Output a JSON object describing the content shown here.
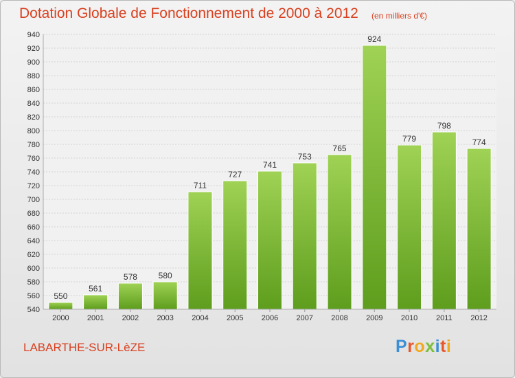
{
  "header": {
    "title": "Dotation Globale de Fonctionnement de 2000 à 2012",
    "subtitle": "(en milliers d'€)"
  },
  "footer": {
    "commune": "LABARTHE-SUR-LèZE",
    "logo_letters": [
      "P",
      "r",
      "o",
      "x",
      "i",
      "t",
      "i"
    ]
  },
  "colors": {
    "title": "#d9401f",
    "bar_top": "#9fd255",
    "bar_bottom": "#5e9d1d"
  },
  "chart_data": {
    "type": "bar",
    "categories": [
      "2000",
      "2001",
      "2002",
      "2003",
      "2004",
      "2005",
      "2006",
      "2007",
      "2008",
      "2009",
      "2010",
      "2011",
      "2012"
    ],
    "values": [
      550,
      561,
      578,
      580,
      711,
      727,
      741,
      753,
      765,
      924,
      779,
      798,
      774
    ],
    "title": "Dotation Globale de Fonctionnement de 2000 à 2012",
    "subtitle": "(en milliers d'€)",
    "xlabel": "",
    "ylabel": "",
    "ylim": [
      540,
      940
    ],
    "ytick_step": 20,
    "grid": true,
    "legend": "none"
  }
}
